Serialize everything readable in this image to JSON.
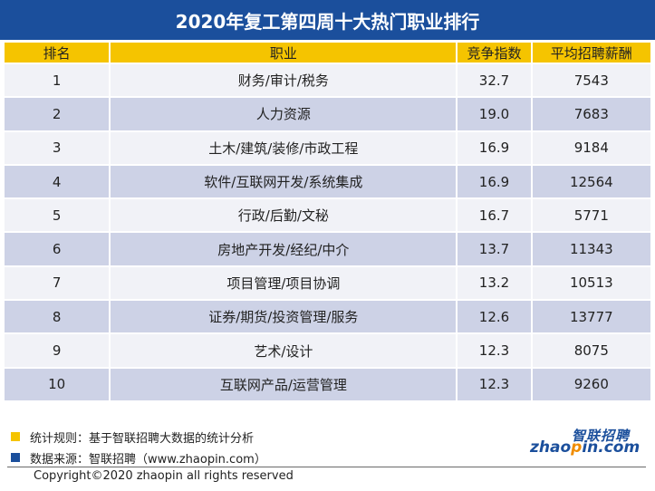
{
  "title": "2020年复工第四周十大热门职业排行",
  "chart_data": {
    "type": "table",
    "columns": [
      "排名",
      "职业",
      "竞争指数",
      "平均招聘薪酬"
    ],
    "rows": [
      [
        "1",
        "财务/审计/税务",
        "32.7",
        "7543"
      ],
      [
        "2",
        "人力资源",
        "19.0",
        "7683"
      ],
      [
        "3",
        "土木/建筑/装修/市政工程",
        "16.9",
        "9184"
      ],
      [
        "4",
        "软件/互联网开发/系统集成",
        "16.9",
        "12564"
      ],
      [
        "5",
        "行政/后勤/文秘",
        "16.7",
        "5771"
      ],
      [
        "6",
        "房地产开发/经纪/中介",
        "13.7",
        "11343"
      ],
      [
        "7",
        "项目管理/项目协调",
        "13.2",
        "10513"
      ],
      [
        "8",
        "证券/期货/投资管理/服务",
        "12.6",
        "13777"
      ],
      [
        "9",
        "艺术/设计",
        "12.3",
        "8075"
      ],
      [
        "10",
        "互联网产品/运营管理",
        "12.3",
        "9260"
      ]
    ]
  },
  "notes": [
    {
      "text": "统计规则：基于智联招聘大数据的统计分析",
      "color": "#f5c400"
    },
    {
      "text": "数据来源：智联招聘（www.zhaopin.com）",
      "color": "#1b4f9c"
    }
  ],
  "copyright": "Copyright©2020 zhaopin all rights reserved",
  "logo": {
    "cn": "智联招聘",
    "en_prefix": "zhao",
    "en_dot": "p",
    "en_suffix": "in.com"
  },
  "colors": {
    "header_bar": "#1b4f9c",
    "column_header": "#f5c400",
    "row_light": "#f1f2f7",
    "row_dark": "#cdd2e6"
  }
}
